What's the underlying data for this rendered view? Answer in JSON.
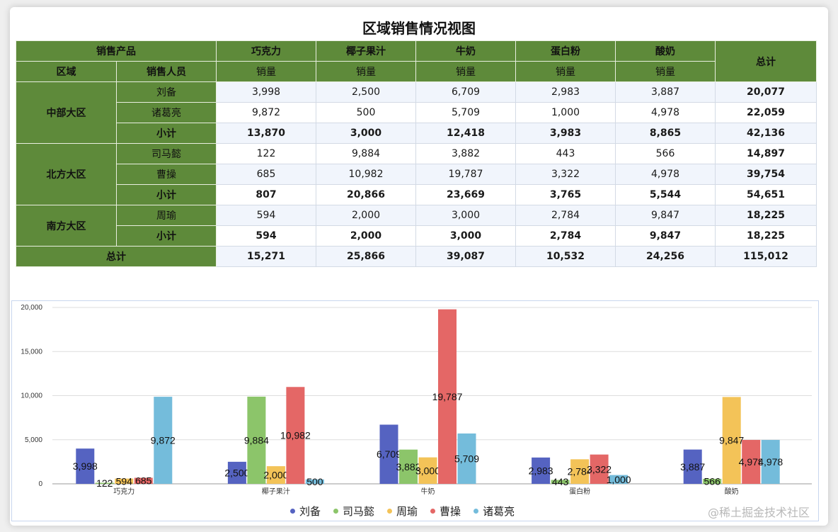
{
  "title": "区域销售情况视图",
  "table": {
    "h1": {
      "product_col": "销售产品",
      "products": [
        "巧克力",
        "椰子果汁",
        "牛奶",
        "蛋白粉",
        "酸奶"
      ],
      "total": "总计"
    },
    "h2": {
      "region": "区域",
      "salesperson": "销售人员",
      "measure": "销量"
    },
    "rows": [
      {
        "region": "中部大区",
        "person": "刘备",
        "values": [
          "3,998",
          "2,500",
          "6,709",
          "2,983",
          "3,887"
        ],
        "total": "20,077"
      },
      {
        "person": "诸葛亮",
        "values": [
          "9,872",
          "500",
          "5,709",
          "1,000",
          "4,978"
        ],
        "total": "22,059"
      },
      {
        "person": "小计",
        "values": [
          "13,870",
          "3,000",
          "12,418",
          "3,983",
          "8,865"
        ],
        "total": "42,136"
      },
      {
        "region": "北方大区",
        "person": "司马懿",
        "values": [
          "122",
          "9,884",
          "3,882",
          "443",
          "566"
        ],
        "total": "14,897"
      },
      {
        "person": "曹操",
        "values": [
          "685",
          "10,982",
          "19,787",
          "3,322",
          "4,978"
        ],
        "total": "39,754"
      },
      {
        "person": "小计",
        "values": [
          "807",
          "20,866",
          "23,669",
          "3,765",
          "5,544"
        ],
        "total": "54,651"
      },
      {
        "region": "南方大区",
        "person": "周瑜",
        "values": [
          "594",
          "2,000",
          "3,000",
          "2,784",
          "9,847"
        ],
        "total": "18,225"
      },
      {
        "person": "小计",
        "values": [
          "594",
          "2,000",
          "3,000",
          "2,784",
          "9,847"
        ],
        "total": "18,225"
      }
    ],
    "grand": {
      "label": "总计",
      "values": [
        "15,271",
        "25,866",
        "39,087",
        "10,532",
        "24,256"
      ],
      "total": "115,012"
    }
  },
  "chart_data": {
    "type": "bar",
    "categories": [
      "巧克力",
      "椰子果汁",
      "牛奶",
      "蛋白粉",
      "酸奶"
    ],
    "series": [
      {
        "name": "刘备",
        "color": "#5563c1",
        "values": [
          3998,
          2500,
          6709,
          2983,
          3887
        ]
      },
      {
        "name": "司马懿",
        "color": "#8cc56a",
        "values": [
          122,
          9884,
          3882,
          443,
          566
        ]
      },
      {
        "name": "周瑜",
        "color": "#f3c358",
        "values": [
          594,
          2000,
          3000,
          2784,
          9847
        ]
      },
      {
        "name": "曹操",
        "color": "#e46766",
        "values": [
          685,
          10982,
          19787,
          3322,
          4978
        ]
      },
      {
        "name": "诸葛亮",
        "color": "#74bcdb",
        "values": [
          9872,
          500,
          5709,
          1000,
          4978
        ]
      }
    ],
    "ylim": [
      0,
      20000
    ],
    "yticks": [
      "0",
      "5,000",
      "10,000",
      "15,000",
      "20,000"
    ],
    "grid": true,
    "legend": "bottom"
  },
  "watermark": "@稀土掘金技术社区"
}
